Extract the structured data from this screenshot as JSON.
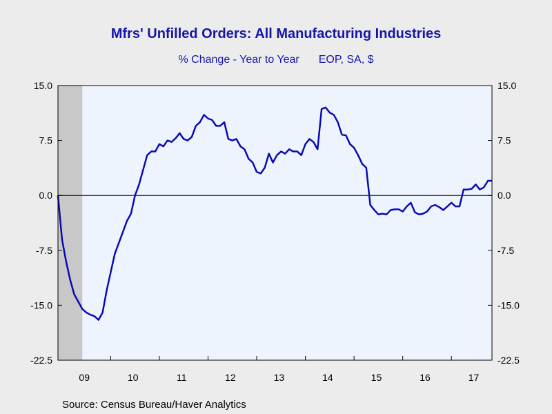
{
  "header": {
    "title": "Mfrs' Unfilled Orders: All Manufacturing Industries",
    "subtitle_left": "% Change - Year to Year",
    "subtitle_right": "EOP, SA, $"
  },
  "footer": {
    "source": "Source:  Census Bureau/Haver Analytics"
  },
  "colors": {
    "line": "#0a0ab4",
    "text": "#1515a8",
    "plot_bg": "#eef4fd",
    "recession": "#c8c8c8"
  },
  "chart_data": {
    "type": "line",
    "title": "Mfrs' Unfilled Orders: All Manufacturing Industries",
    "subtitle": "% Change - Year to Year    EOP, SA, $",
    "xlabel": "",
    "ylabel": "",
    "ylim": [
      -22.5,
      15.0
    ],
    "yticks": [
      "15.0",
      "7.5",
      "0.0",
      "-7.5",
      "-15.0",
      "-22.5"
    ],
    "xtick_labels": [
      "09",
      "10",
      "11",
      "12",
      "13",
      "14",
      "15",
      "16",
      "17"
    ],
    "x_start": "2008-12",
    "recession": {
      "start": "2008-12",
      "end": "2009-06"
    },
    "zero_line": true,
    "grid": false,
    "series": [
      {
        "values": [
          0.0,
          -6.0,
          -9.0,
          -11.5,
          -13.5,
          -14.5,
          -15.5,
          -16.0,
          -16.3,
          -16.5,
          -17.0,
          -16.0,
          -13.0,
          -10.5,
          -8.0,
          -6.5,
          -5.0,
          -3.5,
          -2.5,
          0.0,
          1.5,
          3.5,
          5.5,
          6.0,
          6.0,
          7.0,
          6.7,
          7.5,
          7.3,
          7.8,
          8.5,
          7.7,
          7.5,
          8.0,
          9.5,
          10.0,
          11.0,
          10.5,
          10.3,
          9.5,
          9.5,
          10.0,
          7.7,
          7.5,
          7.7,
          6.7,
          6.3,
          5.0,
          4.5,
          3.2,
          3.0,
          3.8,
          5.7,
          4.5,
          5.5,
          6.0,
          5.7,
          6.3,
          6.0,
          6.0,
          5.5,
          7.0,
          7.7,
          7.3,
          6.3,
          11.8,
          12.0,
          11.3,
          11.0,
          10.0,
          8.3,
          8.2,
          7.0,
          6.5,
          5.5,
          4.3,
          3.8,
          -1.3,
          -2.0,
          -2.6,
          -2.5,
          -2.6,
          -2.0,
          -1.9,
          -1.9,
          -2.2,
          -1.5,
          -1.0,
          -2.3,
          -2.6,
          -2.5,
          -2.2,
          -1.5,
          -1.3,
          -1.6,
          -2.0,
          -1.5,
          -1.0,
          -1.5,
          -1.5,
          0.8,
          0.8,
          0.9,
          1.5,
          0.8,
          1.1,
          2.0,
          2.0
        ]
      }
    ]
  }
}
